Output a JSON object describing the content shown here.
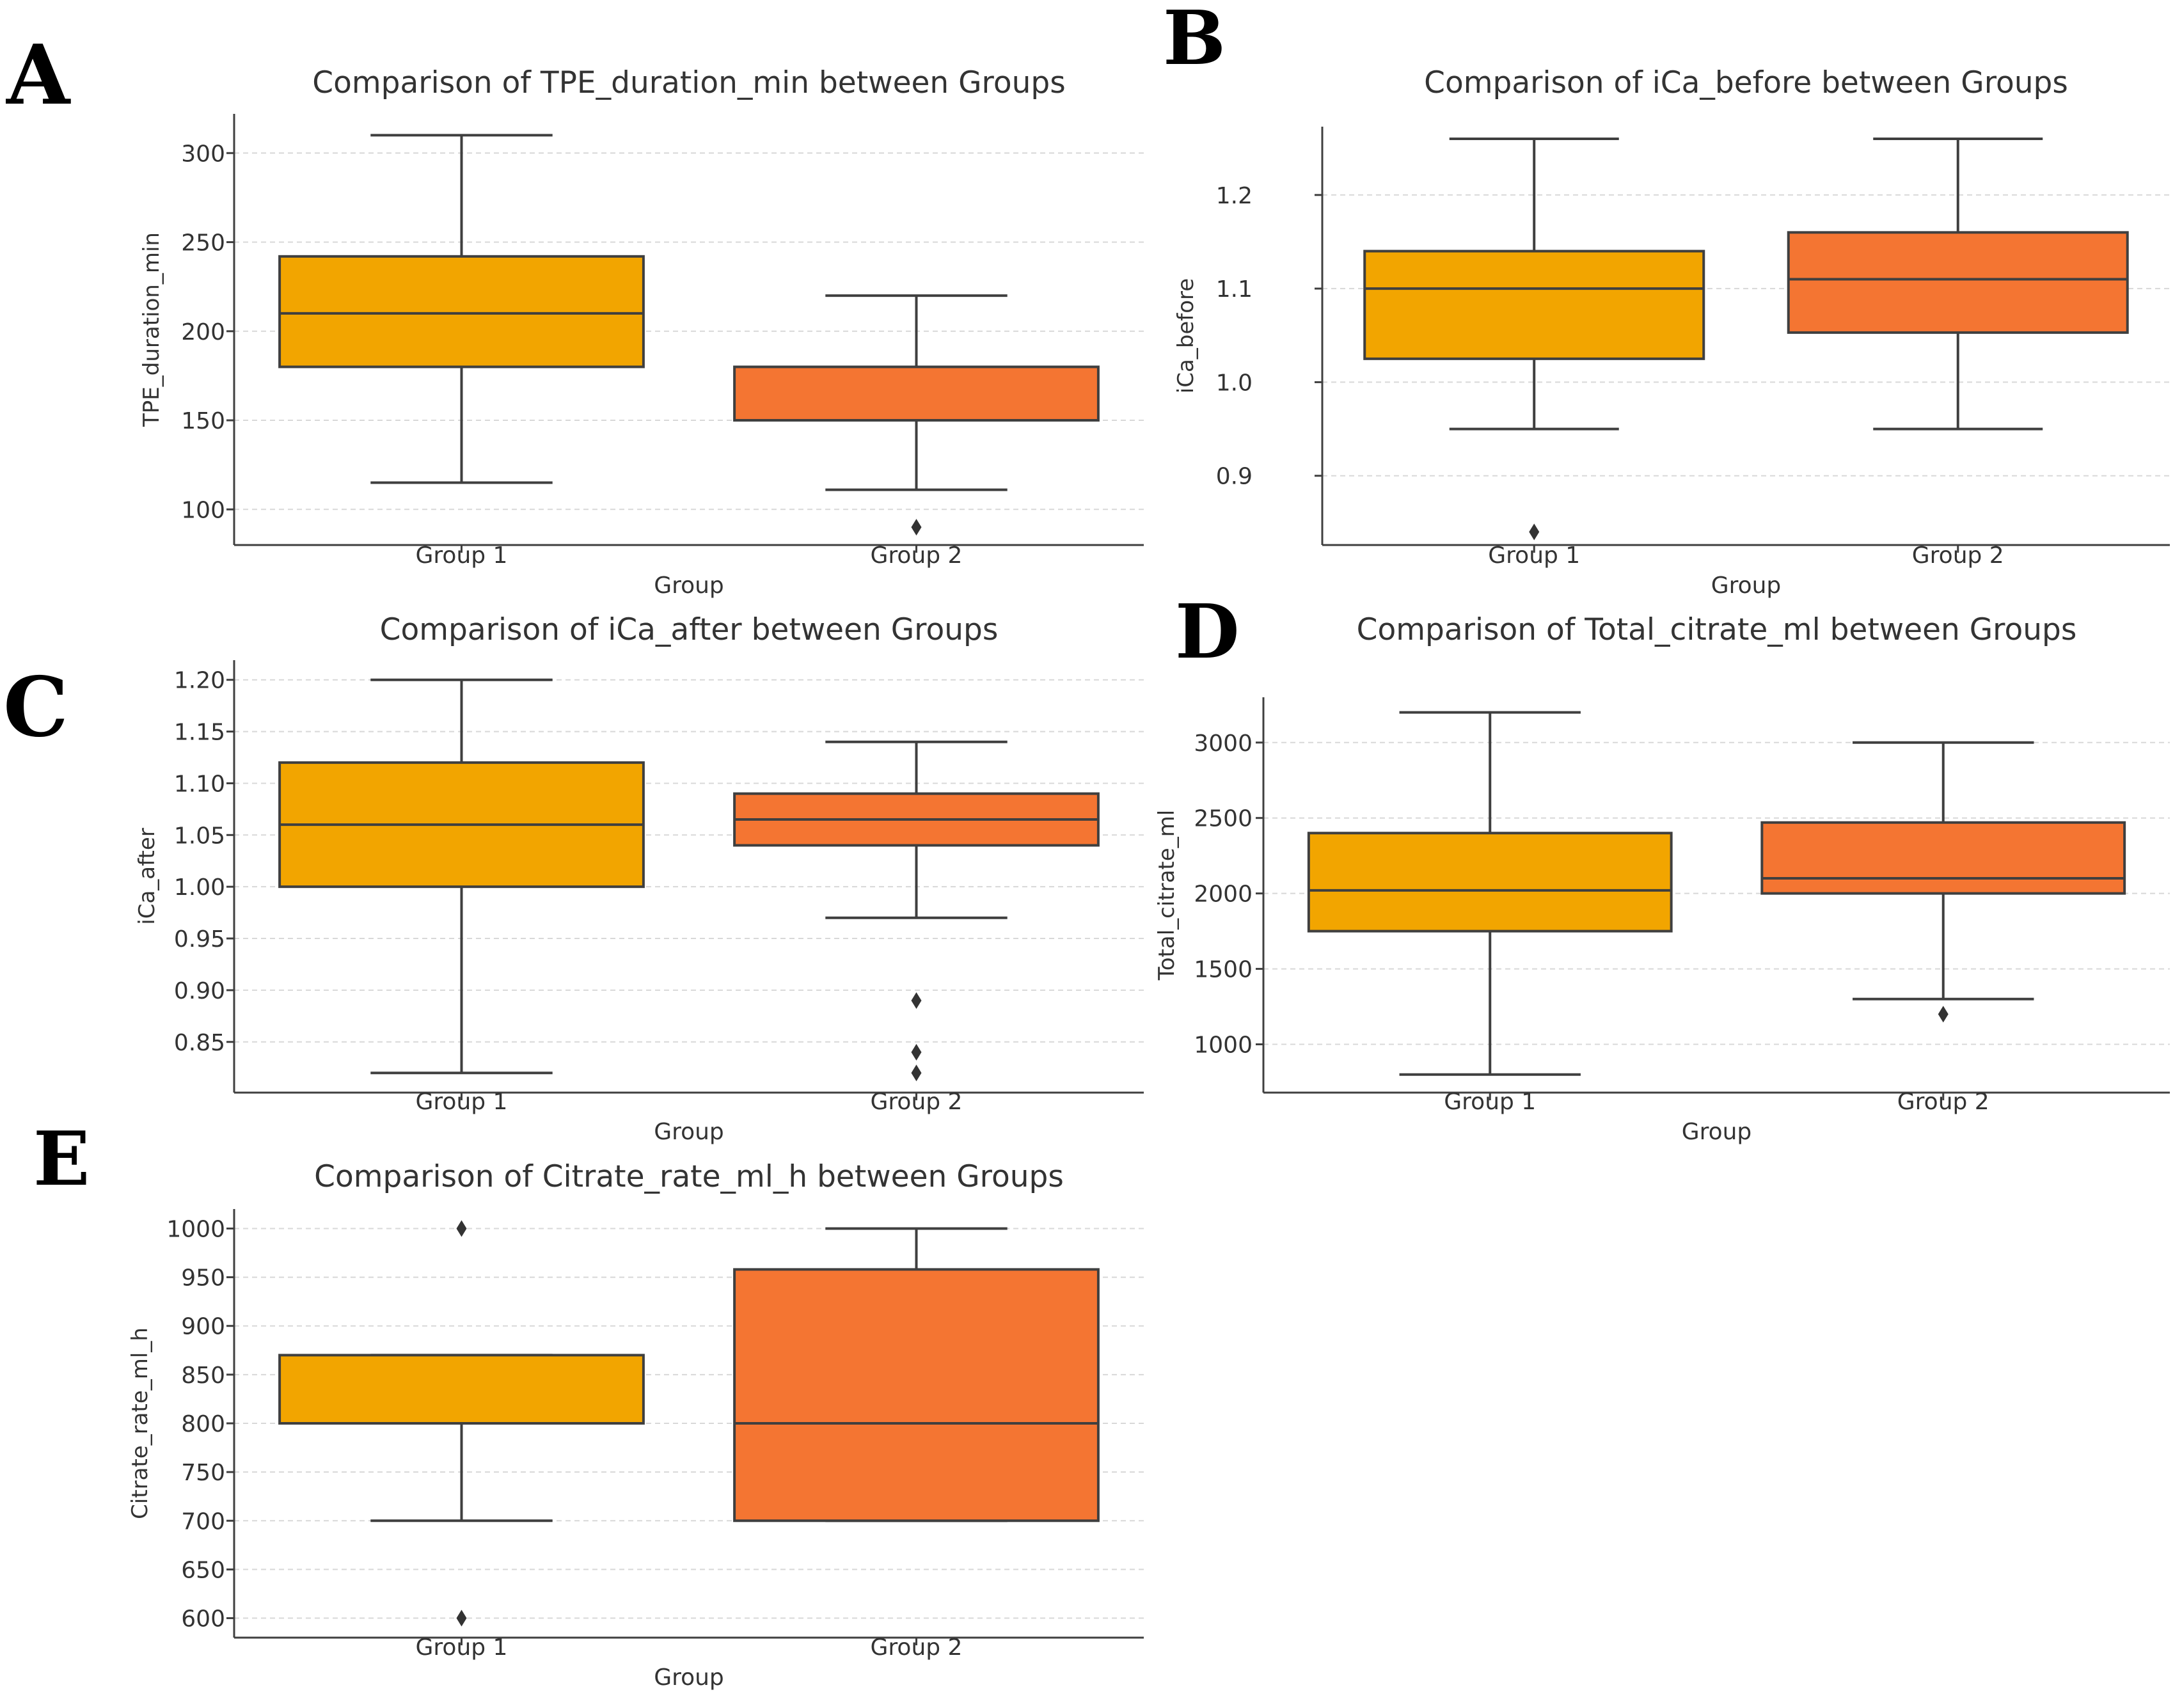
{
  "figure": {
    "panel_letters": [
      "A",
      "B",
      "C",
      "D",
      "E"
    ]
  },
  "colors": {
    "group1": "#F2A500",
    "group2": "#F47532",
    "line": "#3f3f3f",
    "grid": "#d8d8d8"
  },
  "chart_data": [
    {
      "type": "box",
      "panel": "A",
      "title": "Comparison of TPE_duration_min between Groups",
      "xlabel": "Group",
      "ylabel": "TPE_duration_min",
      "categories": [
        "Group 1",
        "Group 2"
      ],
      "ylim": [
        80,
        322
      ],
      "yticks": [
        100,
        150,
        200,
        250,
        300
      ],
      "ytick_labels": [
        "100",
        "150",
        "200",
        "250",
        "300"
      ],
      "boxes": [
        {
          "whislo": 115,
          "q1": 180,
          "med": 210,
          "q3": 242,
          "whishi": 310,
          "fliers": []
        },
        {
          "whislo": 111,
          "q1": 150,
          "med": 150,
          "q3": 180,
          "whishi": 220,
          "fliers": [
            90
          ]
        }
      ]
    },
    {
      "type": "box",
      "panel": "B",
      "title": "Comparison of iCa_before between Groups",
      "xlabel": "Group",
      "ylabel": "iCa_before",
      "categories": [
        "Group 1",
        "Group 2"
      ],
      "ylim": [
        0.826,
        1.273
      ],
      "yticks": [
        0.9,
        1.0,
        1.1,
        1.2
      ],
      "ytick_labels": [
        "0.9",
        "1.0",
        "1.1",
        "1.2"
      ],
      "boxes": [
        {
          "whislo": 0.95,
          "q1": 1.025,
          "med": 1.1,
          "q3": 1.14,
          "whishi": 1.26,
          "fliers": [
            0.84
          ]
        },
        {
          "whislo": 0.95,
          "q1": 1.053,
          "med": 1.11,
          "q3": 1.16,
          "whishi": 1.26,
          "fliers": []
        }
      ]
    },
    {
      "type": "box",
      "panel": "C",
      "title": "Comparison of iCa_after between Groups",
      "xlabel": "Group",
      "ylabel": "iCa_after",
      "categories": [
        "Group 1",
        "Group 2"
      ],
      "ylim": [
        0.801,
        1.219
      ],
      "yticks": [
        0.85,
        0.9,
        0.95,
        1.0,
        1.05,
        1.1,
        1.15,
        1.2
      ],
      "ytick_labels": [
        "0.85",
        "0.90",
        "0.95",
        "1.00",
        "1.05",
        "1.10",
        "1.15",
        "1.20"
      ],
      "boxes": [
        {
          "whislo": 0.82,
          "q1": 1.0,
          "med": 1.06,
          "q3": 1.12,
          "whishi": 1.2,
          "fliers": []
        },
        {
          "whislo": 0.97,
          "q1": 1.04,
          "med": 1.065,
          "q3": 1.09,
          "whishi": 1.14,
          "fliers": [
            0.89,
            0.84,
            0.82
          ]
        }
      ]
    },
    {
      "type": "box",
      "panel": "D",
      "title": "Comparison of Total_citrate_ml between Groups",
      "xlabel": "Group",
      "ylabel": "Total_citrate_ml",
      "categories": [
        "Group 1",
        "Group 2"
      ],
      "ylim": [
        680,
        3300
      ],
      "yticks": [
        1000,
        1500,
        2000,
        2500,
        3000
      ],
      "ytick_labels": [
        "1000",
        "1500",
        "2000",
        "2500",
        "3000"
      ],
      "boxes": [
        {
          "whislo": 800,
          "q1": 1750,
          "med": 2020,
          "q3": 2400,
          "whishi": 3200,
          "fliers": []
        },
        {
          "whislo": 1300,
          "q1": 2000,
          "med": 2100,
          "q3": 2470,
          "whishi": 3000,
          "fliers": [
            1200
          ]
        }
      ]
    },
    {
      "type": "box",
      "panel": "E",
      "title": "Comparison of Citrate_rate_ml_h between Groups",
      "xlabel": "Group",
      "ylabel": "Citrate_rate_ml_h",
      "categories": [
        "Group 1",
        "Group 2"
      ],
      "ylim": [
        580,
        1020
      ],
      "yticks": [
        600,
        650,
        700,
        750,
        800,
        850,
        900,
        950,
        1000
      ],
      "ytick_labels": [
        "600",
        "650",
        "700",
        "750",
        "800",
        "850",
        "900",
        "950",
        "1000"
      ],
      "boxes": [
        {
          "whislo": 700,
          "q1": 800,
          "med": 800,
          "q3": 870,
          "whishi": 870,
          "fliers": [
            1000,
            600
          ]
        },
        {
          "whislo": 700,
          "q1": 700,
          "med": 800,
          "q3": 958,
          "whishi": 1000,
          "fliers": []
        }
      ]
    }
  ]
}
